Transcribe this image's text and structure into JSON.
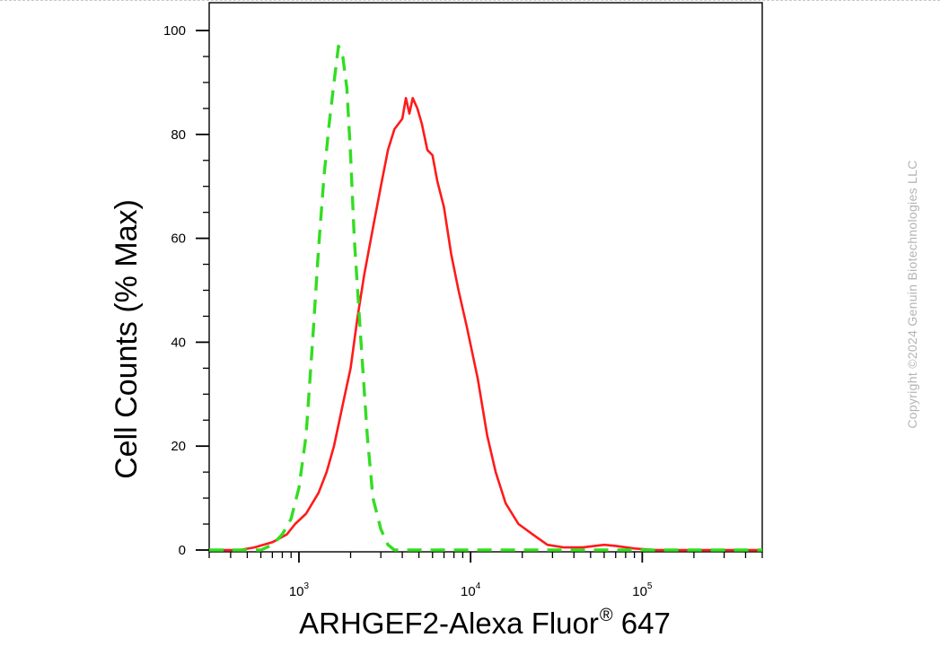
{
  "chart_data": {
    "type": "line",
    "title": "",
    "xlabel": "ARHGEF2-Alexa Fluor",
    "xlabel_sup": "®",
    "xlabel_suffix": " 647",
    "ylabel": "Cell Counts (% Max)",
    "x_scale": "log",
    "xlim": [
      300,
      500000
    ],
    "ylim": [
      0,
      105
    ],
    "y_ticks": [
      "0",
      "20",
      "40",
      "60",
      "80",
      "100"
    ],
    "x_ticks": [
      {
        "base": "10",
        "exp": "3"
      },
      {
        "base": "10",
        "exp": "4"
      },
      {
        "base": "10",
        "exp": "5"
      }
    ],
    "grid": false,
    "legend": false,
    "series": [
      {
        "color": "#ff1a1a",
        "style": "solid",
        "x": [
          300,
          450,
          550,
          700,
          850,
          950,
          1100,
          1300,
          1450,
          1600,
          1800,
          2000,
          2200,
          2400,
          2700,
          3000,
          3300,
          3600,
          4000,
          4200,
          4400,
          4600,
          4900,
          5200,
          5600,
          6000,
          6400,
          7000,
          7700,
          8500,
          9500,
          11000,
          12500,
          14000,
          16000,
          19000,
          23000,
          28000,
          35000,
          45000,
          60000,
          70000,
          90000,
          120000,
          200000,
          500000
        ],
        "y": [
          0,
          0,
          0.5,
          1.5,
          3,
          5,
          7,
          11,
          15,
          20,
          28,
          35,
          45,
          53,
          62,
          70,
          77,
          81,
          83,
          87,
          84,
          87,
          85,
          82,
          77,
          76,
          71,
          66,
          57,
          50,
          43,
          33,
          22,
          15,
          9,
          5,
          3,
          1,
          0.5,
          0.5,
          1,
          0.8,
          0.3,
          0,
          0,
          0
        ]
      },
      {
        "color": "#33dd22",
        "style": "dashed",
        "x": [
          300,
          600,
          700,
          800,
          900,
          1000,
          1100,
          1200,
          1300,
          1400,
          1500,
          1600,
          1700,
          1800,
          1900,
          2000,
          2100,
          2300,
          2500,
          2700,
          3000,
          3300,
          3600,
          4000,
          500000
        ],
        "y": [
          0,
          0,
          1,
          3,
          6,
          12,
          22,
          40,
          58,
          72,
          82,
          90,
          97,
          95,
          89,
          76,
          60,
          40,
          22,
          10,
          4,
          1,
          0,
          0,
          0
        ]
      }
    ]
  },
  "watermark": "Copyright ©2024 Genuin Biotechnologies LLC"
}
